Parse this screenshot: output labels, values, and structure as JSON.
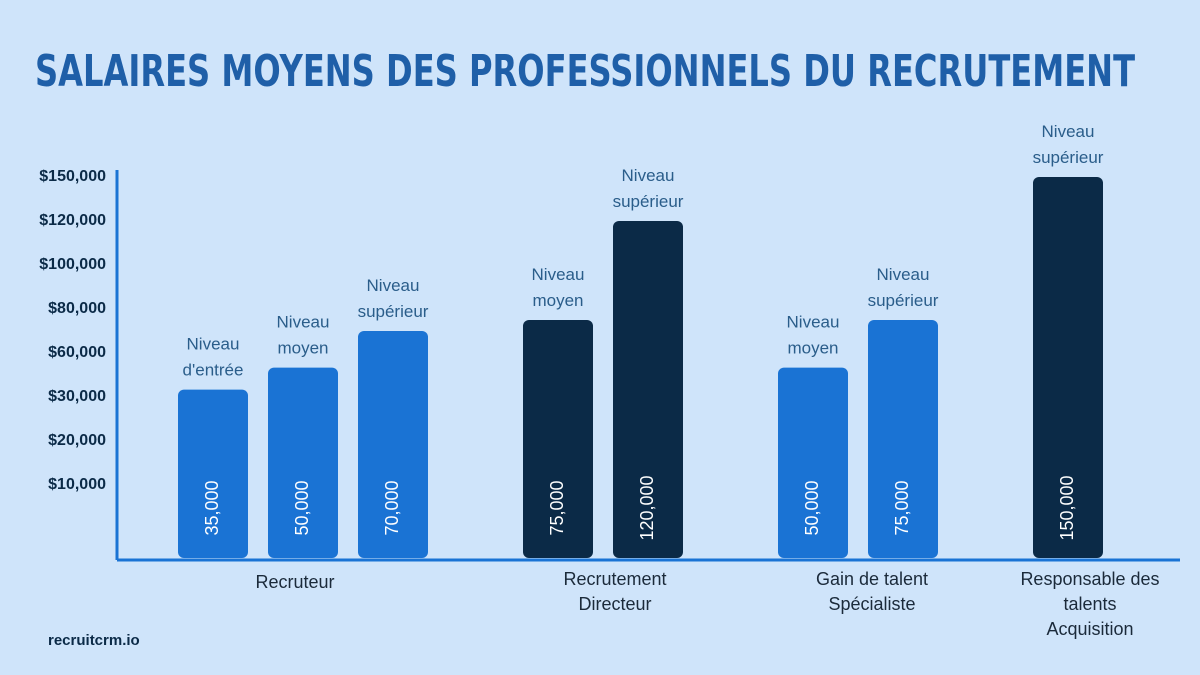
{
  "chart_data": {
    "type": "bar",
    "title": "SALAIRES MOYENS DES PROFESSIONNELS DU RECRUTEMENT",
    "source": "recruitcrm.io",
    "ylim": [
      0,
      150000
    ],
    "yticks": [
      {
        "value": 10000,
        "label": "$10,000"
      },
      {
        "value": 20000,
        "label": "$20,000"
      },
      {
        "value": 30000,
        "label": "$30,000"
      },
      {
        "value": 60000,
        "label": "$60,000"
      },
      {
        "value": 80000,
        "label": "$80,000"
      },
      {
        "value": 100000,
        "label": "$100,000"
      },
      {
        "value": 120000,
        "label": "$120,000"
      },
      {
        "value": 150000,
        "label": "$150,000"
      }
    ],
    "groups": [
      {
        "name": "Recruteur",
        "bars": [
          {
            "label": "Niveau\nd'entrée",
            "value": 35000,
            "value_label": "35,000",
            "color": "#1a73d4"
          },
          {
            "label": "Niveau\nmoyen",
            "value": 50000,
            "value_label": "50,000",
            "color": "#1a73d4"
          },
          {
            "label": "Niveau\nsupérieur",
            "value": 70000,
            "value_label": "70,000",
            "color": "#1a73d4"
          }
        ]
      },
      {
        "name": "Recrutement\nDirecteur",
        "bars": [
          {
            "label": "Niveau\nmoyen",
            "value": 75000,
            "value_label": "75,000",
            "color": "#0b2a47"
          },
          {
            "label": "Niveau\nsupérieur",
            "value": 120000,
            "value_label": "120,000",
            "color": "#0b2a47"
          }
        ]
      },
      {
        "name": "Gain de talent\nSpécialiste",
        "bars": [
          {
            "label": "Niveau\nmoyen",
            "value": 50000,
            "value_label": "50,000",
            "color": "#1a73d4"
          },
          {
            "label": "Niveau\nsupérieur",
            "value": 75000,
            "value_label": "75,000",
            "color": "#1a73d4"
          }
        ]
      },
      {
        "name": "Responsable des\ntalents\nAcquisition",
        "bars": [
          {
            "label": "Niveau\nsupérieur",
            "value": 150000,
            "value_label": "150,000",
            "color": "#0b2a47"
          }
        ]
      }
    ]
  }
}
